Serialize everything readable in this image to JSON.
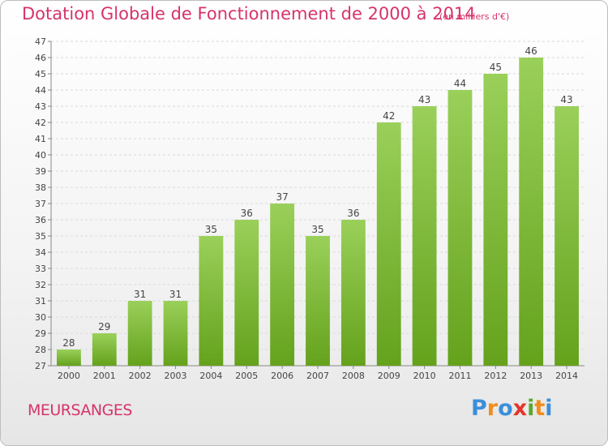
{
  "header": {
    "title": "Dotation Globale de Fonctionnement de 2000 à 2014",
    "unit": "(en milliers d'€)"
  },
  "footer": {
    "commune": "MEURSANGES",
    "logo": [
      "P",
      "r",
      "o",
      "x",
      "i",
      "t",
      "i"
    ],
    "logo_colors": [
      "#3b8fd9",
      "#f28c1a",
      "#3b8fd9",
      "#e63329",
      "#5aa832",
      "#f28c1a",
      "#3b8fd9"
    ]
  },
  "colors": {
    "bar_top": "#9ad05a",
    "bar_bottom": "#64a21c",
    "title": "#d6336c",
    "grid": "#d9d9d9",
    "axis": "#888888"
  },
  "chart_data": {
    "type": "bar",
    "categories": [
      "2000",
      "2001",
      "2002",
      "2003",
      "2004",
      "2005",
      "2006",
      "2007",
      "2008",
      "2009",
      "2010",
      "2011",
      "2012",
      "2013",
      "2014"
    ],
    "values": [
      28,
      29,
      31,
      31,
      35,
      36,
      37,
      35,
      36,
      42,
      43,
      44,
      45,
      46,
      43
    ],
    "ylim": [
      27,
      47
    ],
    "yticks": [
      27,
      28,
      29,
      30,
      31,
      32,
      33,
      34,
      35,
      36,
      37,
      38,
      39,
      40,
      41,
      42,
      43,
      44,
      45,
      46,
      47
    ],
    "grid": true,
    "legend": "none"
  }
}
